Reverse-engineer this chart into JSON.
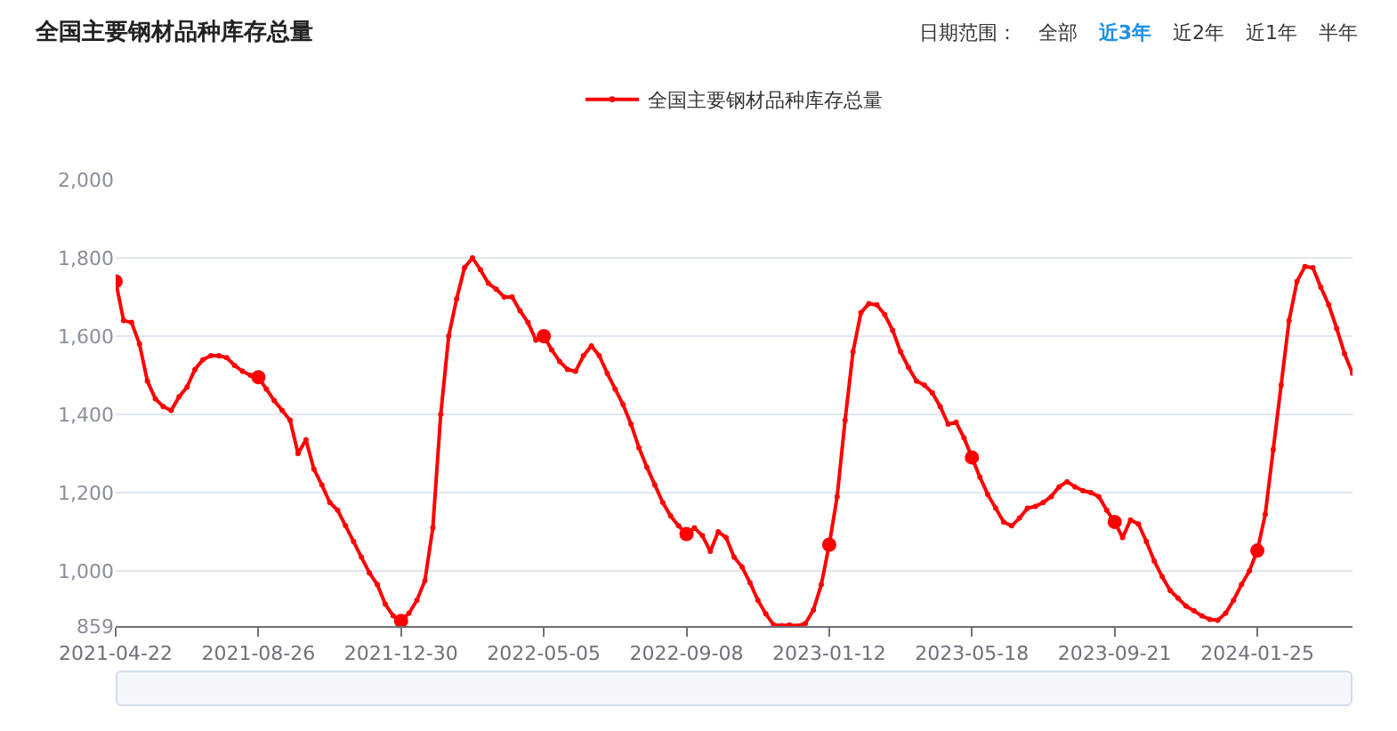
{
  "chart_data": {
    "type": "line",
    "title": "全国主要钢材品种库存总量",
    "annotations": [
      "日期范围：",
      "全部",
      "近3年",
      "近2年",
      "近1年",
      "半年"
    ],
    "x": [
      "2021-04-22",
      "2021-04-29",
      "2021-05-06",
      "2021-05-13",
      "2021-05-20",
      "2021-05-27",
      "2021-06-03",
      "2021-06-10",
      "2021-06-17",
      "2021-06-24",
      "2021-07-01",
      "2021-07-08",
      "2021-07-15",
      "2021-07-22",
      "2021-07-29",
      "2021-08-05",
      "2021-08-12",
      "2021-08-19",
      "2021-08-26",
      "2021-09-02",
      "2021-09-09",
      "2021-09-16",
      "2021-09-23",
      "2021-09-30",
      "2021-10-07",
      "2021-10-14",
      "2021-10-21",
      "2021-10-28",
      "2021-11-04",
      "2021-11-11",
      "2021-11-18",
      "2021-11-25",
      "2021-12-02",
      "2021-12-09",
      "2021-12-16",
      "2021-12-23",
      "2021-12-30",
      "2022-01-06",
      "2022-01-13",
      "2022-01-20",
      "2022-01-27",
      "2022-02-03",
      "2022-02-10",
      "2022-02-17",
      "2022-02-24",
      "2022-03-03",
      "2022-03-10",
      "2022-03-17",
      "2022-03-24",
      "2022-03-31",
      "2022-04-07",
      "2022-04-14",
      "2022-04-21",
      "2022-04-28",
      "2022-05-05",
      "2022-05-12",
      "2022-05-19",
      "2022-05-26",
      "2022-06-02",
      "2022-06-09",
      "2022-06-16",
      "2022-06-23",
      "2022-06-30",
      "2022-07-07",
      "2022-07-14",
      "2022-07-21",
      "2022-07-28",
      "2022-08-04",
      "2022-08-11",
      "2022-08-18",
      "2022-08-25",
      "2022-09-01",
      "2022-09-08",
      "2022-09-15",
      "2022-09-22",
      "2022-09-29",
      "2022-10-06",
      "2022-10-13",
      "2022-10-20",
      "2022-10-27",
      "2022-11-03",
      "2022-11-10",
      "2022-11-17",
      "2022-11-24",
      "2022-12-01",
      "2022-12-08",
      "2022-12-15",
      "2022-12-22",
      "2022-12-29",
      "2023-01-05",
      "2023-01-12",
      "2023-01-19",
      "2023-01-26",
      "2023-02-02",
      "2023-02-09",
      "2023-02-16",
      "2023-02-23",
      "2023-03-02",
      "2023-03-09",
      "2023-03-16",
      "2023-03-23",
      "2023-03-30",
      "2023-04-06",
      "2023-04-13",
      "2023-04-20",
      "2023-04-27",
      "2023-05-04",
      "2023-05-11",
      "2023-05-18",
      "2023-05-25",
      "2023-06-01",
      "2023-06-08",
      "2023-06-15",
      "2023-06-22",
      "2023-06-29",
      "2023-07-06",
      "2023-07-13",
      "2023-07-20",
      "2023-07-27",
      "2023-08-03",
      "2023-08-10",
      "2023-08-17",
      "2023-08-24",
      "2023-08-31",
      "2023-09-07",
      "2023-09-14",
      "2023-09-21",
      "2023-09-28",
      "2023-10-05",
      "2023-10-12",
      "2023-10-19",
      "2023-10-26",
      "2023-11-02",
      "2023-11-09",
      "2023-11-16",
      "2023-11-23",
      "2023-11-30",
      "2023-12-07",
      "2023-12-14",
      "2023-12-21",
      "2023-12-28",
      "2024-01-04",
      "2024-01-11",
      "2024-01-18",
      "2024-01-25",
      "2024-02-01",
      "2024-02-08",
      "2024-02-15",
      "2024-02-22",
      "2024-02-29",
      "2024-03-07",
      "2024-03-14",
      "2024-03-21",
      "2024-03-28",
      "2024-04-04",
      "2024-04-11",
      "2024-04-18"
    ],
    "series": [
      {
        "name": "全国主要钢材品种库存总量",
        "color": "#ff0000",
        "values": [
          1740,
          1640,
          1635,
          1580,
          1485,
          1440,
          1420,
          1410,
          1445,
          1470,
          1515,
          1540,
          1550,
          1550,
          1545,
          1525,
          1510,
          1500,
          1495,
          1465,
          1435,
          1410,
          1385,
          1300,
          1335,
          1260,
          1220,
          1175,
          1155,
          1115,
          1075,
          1035,
          995,
          965,
          915,
          885,
          872,
          892,
          925,
          975,
          1110,
          1400,
          1600,
          1695,
          1775,
          1800,
          1770,
          1735,
          1720,
          1700,
          1700,
          1665,
          1635,
          1590,
          1600,
          1565,
          1535,
          1515,
          1510,
          1550,
          1575,
          1550,
          1505,
          1465,
          1425,
          1375,
          1315,
          1265,
          1220,
          1175,
          1140,
          1115,
          1094,
          1110,
          1090,
          1050,
          1100,
          1085,
          1035,
          1010,
          970,
          925,
          890,
          862,
          860,
          862,
          859,
          866,
          900,
          965,
          1067,
          1190,
          1385,
          1560,
          1660,
          1683,
          1680,
          1655,
          1615,
          1560,
          1520,
          1485,
          1475,
          1455,
          1420,
          1375,
          1380,
          1340,
          1290,
          1240,
          1195,
          1160,
          1125,
          1115,
          1135,
          1160,
          1165,
          1175,
          1190,
          1215,
          1228,
          1215,
          1205,
          1200,
          1190,
          1155,
          1125,
          1085,
          1130,
          1120,
          1075,
          1025,
          985,
          950,
          930,
          910,
          898,
          885,
          876,
          874,
          892,
          925,
          965,
          1000,
          1052,
          1145,
          1310,
          1475,
          1640,
          1740,
          1778,
          1775,
          1725,
          1680,
          1620,
          1555,
          1505
        ]
      }
    ],
    "xlim": [
      "2021-04-22",
      "2024-04-18"
    ],
    "xticks": [
      "2021-04-22",
      "2021-08-26",
      "2021-12-30",
      "2022-05-05",
      "2022-09-08",
      "2023-01-12",
      "2023-05-18",
      "2023-09-21",
      "2024-01-25"
    ],
    "ylim": [
      859,
      2000
    ],
    "yticks": [
      {
        "value": 859,
        "label": "859"
      },
      {
        "value": 1000,
        "label": "1,000"
      },
      {
        "value": 1200,
        "label": "1,200"
      },
      {
        "value": 1400,
        "label": "1,400"
      },
      {
        "value": 1600,
        "label": "1,600"
      },
      {
        "value": 1800,
        "label": "1,800"
      },
      {
        "value": 2000,
        "label": "2,000"
      }
    ],
    "grid": "y",
    "legend": "top",
    "marker": "circle",
    "line_style": "solid"
  }
}
